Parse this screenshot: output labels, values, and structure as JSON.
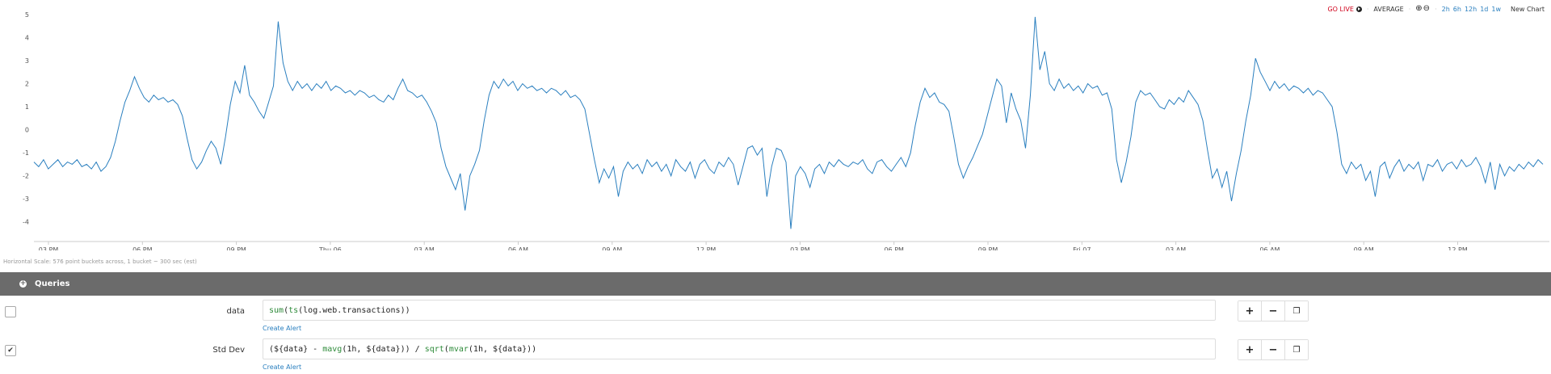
{
  "toolbar": {
    "go_live": "GO LIVE",
    "aggregation": "AVERAGE",
    "zoom_in_icon": "zoom-in-icon",
    "zoom_out_icon": "zoom-out-icon",
    "ranges": [
      "2h",
      "6h",
      "12h",
      "1d",
      "1w"
    ],
    "new_chart": "New Chart"
  },
  "horizontal_scale": "Horizontal Scale: 576 point buckets across, 1 bucket ~ 300 sec (est)",
  "queries_title": "Queries",
  "queries": [
    {
      "name": "data",
      "checked": false,
      "expr": [
        [
          "fn",
          "sum"
        ],
        [
          "t",
          "("
        ],
        [
          "fn",
          "ts"
        ],
        [
          "t",
          "(log.web.transactions))"
        ]
      ],
      "create_alert": "Create Alert"
    },
    {
      "name": "Std Dev",
      "checked": true,
      "expr": [
        [
          "t",
          "(${data} - "
        ],
        [
          "fn",
          "mavg"
        ],
        [
          "t",
          "(1h, ${data})) / "
        ],
        [
          "fn",
          "sqrt"
        ],
        [
          "t",
          "("
        ],
        [
          "fn",
          "mvar"
        ],
        [
          "t",
          "(1h, ${data}))"
        ]
      ],
      "create_alert": "Create Alert"
    }
  ],
  "colors": {
    "line": "#2a7fbf",
    "go_live": "#d0021b",
    "queries_bar": "#6b6b6b",
    "function": "#2e8b3a"
  },
  "chart_data": {
    "type": "line",
    "ylim": [
      -4.5,
      5
    ],
    "yticks": [
      5,
      4,
      3,
      2,
      1,
      0,
      -1,
      -2,
      -3,
      -4
    ],
    "xticks": [
      "03 PM",
      "06 PM",
      "09 PM",
      "Thu 06",
      "03 AM",
      "06 AM",
      "09 AM",
      "12 PM",
      "03 PM",
      "06 PM",
      "09 PM",
      "Fri 07",
      "03 AM",
      "06 AM",
      "09 AM",
      "12 PM"
    ],
    "series": [
      {
        "values": [
          -1.4,
          -1.6,
          -1.3,
          -1.7,
          -1.5,
          -1.3,
          -1.6,
          -1.4,
          -1.5,
          -1.3,
          -1.6,
          -1.5,
          -1.7,
          -1.4,
          -1.8,
          -1.6,
          -1.2,
          -0.5,
          0.4,
          1.2,
          1.7,
          2.3,
          1.8,
          1.4,
          1.2,
          1.5,
          1.3,
          1.4,
          1.2,
          1.3,
          1.1,
          0.6,
          -0.4,
          -1.3,
          -1.7,
          -1.4,
          -0.9,
          -0.5,
          -0.8,
          -1.5,
          -0.3,
          1.1,
          2.1,
          1.6,
          2.8,
          1.5,
          1.2,
          0.8,
          0.5,
          1.2,
          1.9,
          4.7,
          2.9,
          2.1,
          1.7,
          2.1,
          1.8,
          2.0,
          1.7,
          2.0,
          1.8,
          2.1,
          1.7,
          1.9,
          1.8,
          1.6,
          1.7,
          1.5,
          1.7,
          1.6,
          1.4,
          1.5,
          1.3,
          1.2,
          1.5,
          1.3,
          1.8,
          2.2,
          1.7,
          1.6,
          1.4,
          1.5,
          1.2,
          0.8,
          0.3,
          -0.8,
          -1.6,
          -2.1,
          -2.6,
          -1.9,
          -3.5,
          -2.0,
          -1.5,
          -0.9,
          0.4,
          1.5,
          2.1,
          1.8,
          2.2,
          1.9,
          2.1,
          1.7,
          2.0,
          1.8,
          1.9,
          1.7,
          1.8,
          1.6,
          1.8,
          1.7,
          1.5,
          1.7,
          1.4,
          1.5,
          1.3,
          0.9,
          -0.2,
          -1.3,
          -2.3,
          -1.7,
          -2.1,
          -1.6,
          -2.9,
          -1.8,
          -1.4,
          -1.7,
          -1.5,
          -1.9,
          -1.3,
          -1.6,
          -1.4,
          -1.8,
          -1.5,
          -2.0,
          -1.3,
          -1.6,
          -1.8,
          -1.4,
          -2.1,
          -1.5,
          -1.3,
          -1.7,
          -1.9,
          -1.4,
          -1.6,
          -1.2,
          -1.5,
          -2.4,
          -1.6,
          -0.8,
          -0.7,
          -1.1,
          -0.8,
          -2.9,
          -1.6,
          -0.8,
          -0.9,
          -1.4,
          -4.3,
          -2.0,
          -1.6,
          -1.9,
          -2.5,
          -1.7,
          -1.5,
          -1.9,
          -1.4,
          -1.6,
          -1.3,
          -1.5,
          -1.6,
          -1.4,
          -1.5,
          -1.3,
          -1.7,
          -1.9,
          -1.4,
          -1.3,
          -1.6,
          -1.8,
          -1.5,
          -1.2,
          -1.6,
          -1.0,
          0.2,
          1.2,
          1.8,
          1.4,
          1.6,
          1.2,
          1.1,
          0.8,
          -0.3,
          -1.5,
          -2.1,
          -1.6,
          -1.2,
          -0.7,
          -0.2,
          0.6,
          1.4,
          2.2,
          1.9,
          0.3,
          1.6,
          0.9,
          0.4,
          -0.8,
          1.5,
          4.9,
          2.6,
          3.4,
          2.0,
          1.7,
          2.2,
          1.8,
          2.0,
          1.7,
          1.9,
          1.6,
          2.0,
          1.8,
          1.9,
          1.5,
          1.6,
          0.9,
          -1.3,
          -2.3,
          -1.4,
          -0.3,
          1.2,
          1.7,
          1.5,
          1.6,
          1.3,
          1.0,
          0.9,
          1.3,
          1.1,
          1.4,
          1.2,
          1.7,
          1.4,
          1.1,
          0.4,
          -0.9,
          -2.1,
          -1.7,
          -2.5,
          -1.8,
          -3.1,
          -1.9,
          -0.9,
          0.4,
          1.5,
          3.1,
          2.5,
          2.1,
          1.7,
          2.1,
          1.8,
          2.0,
          1.7,
          1.9,
          1.8,
          1.6,
          1.8,
          1.5,
          1.7,
          1.6,
          1.3,
          1.0,
          -0.1,
          -1.5,
          -1.9,
          -1.4,
          -1.7,
          -1.5,
          -2.2,
          -1.8,
          -2.9,
          -1.6,
          -1.4,
          -2.1,
          -1.6,
          -1.3,
          -1.8,
          -1.5,
          -1.7,
          -1.4,
          -2.2,
          -1.5,
          -1.6,
          -1.3,
          -1.8,
          -1.5,
          -1.4,
          -1.7,
          -1.3,
          -1.6,
          -1.5,
          -1.2,
          -1.6,
          -2.3,
          -1.4,
          -2.6,
          -1.5,
          -2.0,
          -1.6,
          -1.8,
          -1.5,
          -1.7,
          -1.4,
          -1.6,
          -1.3,
          -1.5
        ]
      }
    ]
  }
}
